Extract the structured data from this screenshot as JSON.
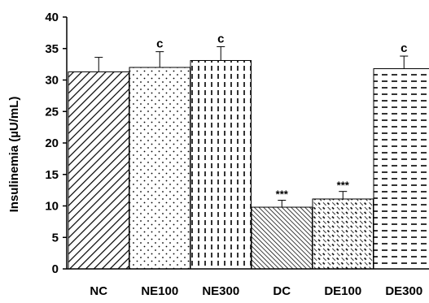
{
  "chart_data": {
    "type": "bar",
    "ylabel": "Insulinemia (µU/mL)",
    "xlabel": "",
    "ylim": [
      0,
      40
    ],
    "yticks": [
      0,
      5,
      10,
      15,
      20,
      25,
      30,
      35,
      40
    ],
    "categories": [
      "NC",
      "NE100",
      "NE300",
      "DC",
      "DE100",
      "DE300"
    ],
    "values": [
      31.3,
      32.0,
      33.1,
      9.8,
      11.1,
      31.8
    ],
    "errors": [
      2.3,
      2.5,
      2.2,
      1.1,
      1.2,
      2.0
    ],
    "annotations": [
      "",
      "c",
      "c",
      "***",
      "***",
      "c"
    ],
    "patterns": [
      "wide-diagonal",
      "dots",
      "vertical-dashes",
      "dense-diagonal",
      "short-dashes-diagonal",
      "horizontal-dashes"
    ],
    "grid": false,
    "legend": "none",
    "colors": {
      "bar_fill": "#ffffff",
      "pattern": "#000000",
      "axis": "#000000"
    }
  }
}
